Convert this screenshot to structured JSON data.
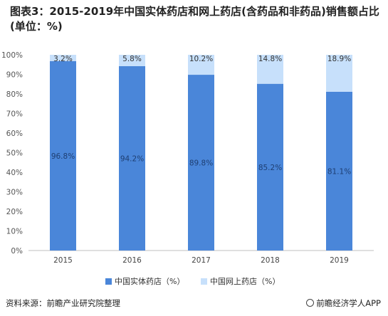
{
  "title": "图表3：2015-2019年中国实体药店和网上药店(含药品和非药品)销售额占比(单位：%)",
  "source": "资料来源：前瞻产业研究院整理",
  "brand": "前瞻经济学人APP",
  "colors": {
    "offline": "#4a86d9",
    "online": "#c7e0fb"
  },
  "legend": [
    "中国实体药店（%）",
    "中国网上药店（%）"
  ],
  "chart_data": {
    "type": "bar",
    "stacked": true,
    "categories": [
      "2015",
      "2016",
      "2017",
      "2018",
      "2019"
    ],
    "series": [
      {
        "name": "中国实体药店（%）",
        "values": [
          96.8,
          94.2,
          89.8,
          85.2,
          81.1
        ]
      },
      {
        "name": "中国网上药店（%）",
        "values": [
          3.2,
          5.8,
          10.2,
          14.8,
          18.9
        ]
      }
    ],
    "y_ticks": [
      "0%",
      "10%",
      "20%",
      "30%",
      "40%",
      "50%",
      "60%",
      "70%",
      "80%",
      "90%",
      "100%"
    ],
    "ylim": [
      0,
      100
    ],
    "legend_position": "bottom",
    "grid": false
  }
}
